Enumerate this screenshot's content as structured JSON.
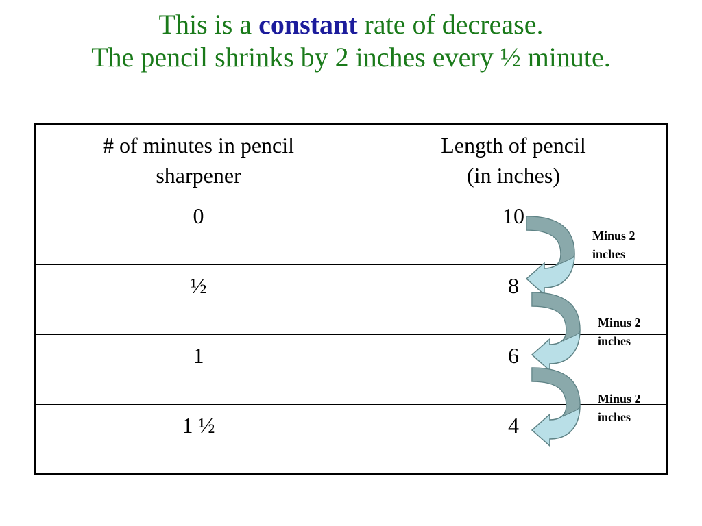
{
  "title": {
    "line1_before": "This is a ",
    "line1_emph": "constant",
    "line1_after": " rate of decrease.",
    "line2": "The pencil shrinks by 2 inches every ½ minute."
  },
  "table": {
    "headers": [
      {
        "line1": "# of minutes in pencil",
        "line2": "sharpener"
      },
      {
        "line1": "Length of pencil",
        "line2": "(in inches)"
      }
    ],
    "rows": [
      {
        "minutes": "0",
        "length": "10"
      },
      {
        "minutes": "½",
        "length": "8"
      },
      {
        "minutes": "1",
        "length": "6"
      },
      {
        "minutes": "1 ½",
        "length": "4"
      }
    ]
  },
  "annotations": [
    {
      "line1": "Minus 2",
      "line2": "inches"
    },
    {
      "line1": "Minus 2",
      "line2": "inches"
    },
    {
      "line1": "Minus 2",
      "line2": "inches"
    }
  ],
  "colors": {
    "title_green": "#1a7a1a",
    "title_emph_blue": "#1c1c9c",
    "arrow_dark": "#8aa9ab",
    "arrow_light": "#b9dfe7",
    "arrow_outline": "#5e8285"
  }
}
